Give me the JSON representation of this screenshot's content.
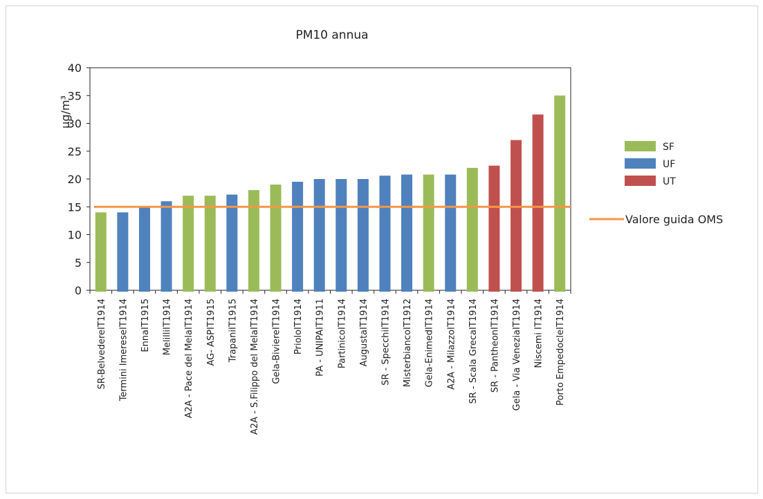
{
  "chart_data": {
    "type": "bar",
    "title": "PM10 annua",
    "ylabel": "µg/m³",
    "xlabel": "",
    "ylim": [
      0,
      40
    ],
    "yticks": [
      0,
      5,
      10,
      15,
      20,
      25,
      30,
      35,
      40
    ],
    "grid": false,
    "legend_position": "right",
    "categories": [
      "SR-BelvedereIT1914",
      "Termini ImereseIT1914",
      "EnnaIT1915",
      "MelilliIT1914",
      "A2A - Pace del MelaIT1914",
      "AG- ASPIT1915",
      "TrapaniIT1915",
      "A2A - S.Filippo del MelaIT1914",
      "Gela-BiviereIT1914",
      "PrioloIT1914",
      "PA - UNIPAIT1911",
      "PartinicoIT1914",
      "AugustaIT1914",
      "SR - SpecchiIT1914",
      "MisterbiancoIT1912",
      "Gela-EnimedIT1914",
      "A2A - MilazzoIT1914",
      "SR - Scala GrecaIT1914",
      "SR - PantheonIT1914",
      "Gela - Via VeneziaIT1914",
      "Niscemi IT1914",
      "Porto EmpedocleIT1914"
    ],
    "values": [
      14,
      14,
      15,
      16,
      17,
      17,
      17.2,
      18,
      19,
      19.5,
      20,
      20,
      20,
      20.6,
      20.8,
      20.8,
      20.8,
      22,
      22.4,
      27,
      31.6,
      35
    ],
    "groups": [
      "SF",
      "UF",
      "UF",
      "UF",
      "SF",
      "SF",
      "UF",
      "SF",
      "SF",
      "UF",
      "UF",
      "UF",
      "UF",
      "UF",
      "UF",
      "SF",
      "UF",
      "SF",
      "UT",
      "UT",
      "UT",
      "SF"
    ],
    "series": [
      {
        "name": "SF",
        "color": "#9bbb59"
      },
      {
        "name": "UF",
        "color": "#4f81bd"
      },
      {
        "name": "UT",
        "color": "#c0504d"
      }
    ],
    "reference_line": {
      "name": "Valore guida OMS",
      "value": 15,
      "color": "#f79646"
    }
  }
}
